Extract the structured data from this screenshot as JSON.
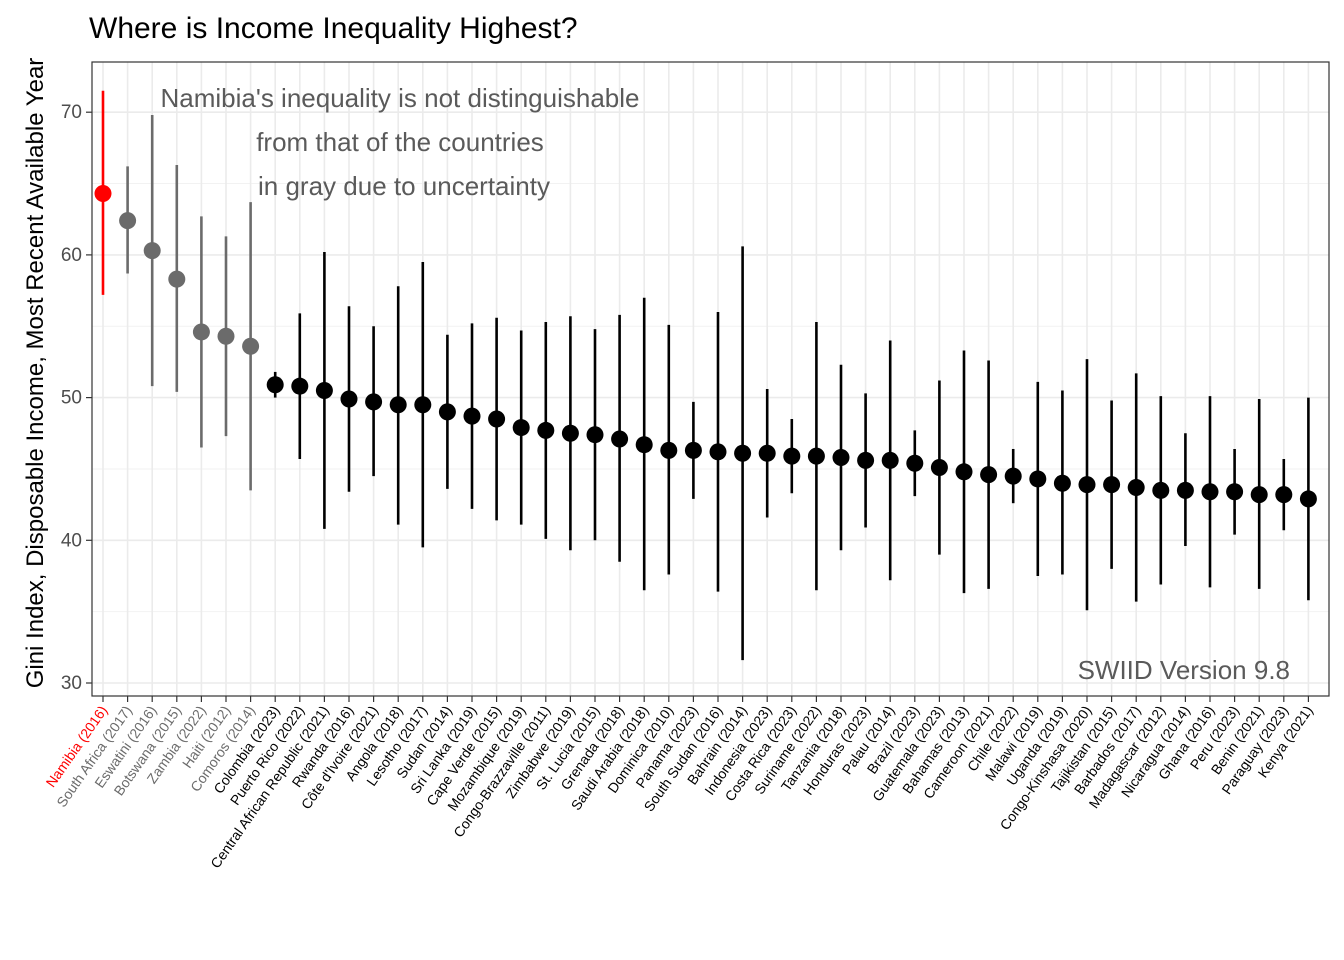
{
  "chart_data": {
    "type": "scatter",
    "title": "Where is Income Inequality Highest?",
    "xlabel": "",
    "ylabel": "Gini Index, Disposable Income, Most Recent Available Year",
    "ylim": [
      29.3,
      73.6
    ],
    "yticks": [
      30,
      40,
      50,
      60,
      70
    ],
    "grid": true,
    "annotation": [
      "Namibia's inequality is not distinguishable",
      "from that of the countries",
      "in gray due to uncertainty"
    ],
    "source_note": "SWIID Version 9.8",
    "colors": {
      "highlight": "#ff0000",
      "uncertain": "#6b6b6b",
      "other": "#000000",
      "grid": "#ebebeb"
    },
    "points": [
      {
        "label": "Namibia (2016)",
        "value": 64.3,
        "lower": 57.2,
        "upper": 71.5,
        "group": "highlight"
      },
      {
        "label": "South Africa (2017)",
        "value": 62.4,
        "lower": 58.7,
        "upper": 66.2,
        "group": "uncertain"
      },
      {
        "label": "Eswatini (2016)",
        "value": 60.3,
        "lower": 50.8,
        "upper": 69.8,
        "group": "uncertain"
      },
      {
        "label": "Botswana (2015)",
        "value": 58.3,
        "lower": 50.4,
        "upper": 66.3,
        "group": "uncertain"
      },
      {
        "label": "Zambia (2022)",
        "value": 54.6,
        "lower": 46.5,
        "upper": 62.7,
        "group": "uncertain"
      },
      {
        "label": "Haiti (2012)",
        "value": 54.3,
        "lower": 47.3,
        "upper": 61.3,
        "group": "uncertain"
      },
      {
        "label": "Comoros (2014)",
        "value": 53.6,
        "lower": 43.5,
        "upper": 63.7,
        "group": "uncertain"
      },
      {
        "label": "Colombia (2023)",
        "value": 50.9,
        "lower": 50.0,
        "upper": 51.8,
        "group": "other"
      },
      {
        "label": "Puerto Rico (2022)",
        "value": 50.8,
        "lower": 45.7,
        "upper": 55.9,
        "group": "other"
      },
      {
        "label": "Central African Republic (2021)",
        "value": 50.5,
        "lower": 40.8,
        "upper": 60.2,
        "group": "other"
      },
      {
        "label": "Rwanda (2016)",
        "value": 49.9,
        "lower": 43.4,
        "upper": 56.4,
        "group": "other"
      },
      {
        "label": "Côte d'Ivoire (2021)",
        "value": 49.7,
        "lower": 44.5,
        "upper": 55.0,
        "group": "other"
      },
      {
        "label": "Angola (2018)",
        "value": 49.5,
        "lower": 41.1,
        "upper": 57.8,
        "group": "other"
      },
      {
        "label": "Lesotho (2017)",
        "value": 49.5,
        "lower": 39.5,
        "upper": 59.5,
        "group": "other"
      },
      {
        "label": "Sudan (2014)",
        "value": 49.0,
        "lower": 43.6,
        "upper": 54.4,
        "group": "other"
      },
      {
        "label": "Sri Lanka (2019)",
        "value": 48.7,
        "lower": 42.2,
        "upper": 55.2,
        "group": "other"
      },
      {
        "label": "Cape Verde (2015)",
        "value": 48.5,
        "lower": 41.4,
        "upper": 55.6,
        "group": "other"
      },
      {
        "label": "Mozambique (2019)",
        "value": 47.9,
        "lower": 41.1,
        "upper": 54.7,
        "group": "other"
      },
      {
        "label": "Congo-Brazzaville (2011)",
        "value": 47.7,
        "lower": 40.1,
        "upper": 55.3,
        "group": "other"
      },
      {
        "label": "Zimbabwe (2019)",
        "value": 47.5,
        "lower": 39.3,
        "upper": 55.7,
        "group": "other"
      },
      {
        "label": "St. Lucia (2015)",
        "value": 47.4,
        "lower": 40.0,
        "upper": 54.8,
        "group": "other"
      },
      {
        "label": "Grenada (2018)",
        "value": 47.1,
        "lower": 38.5,
        "upper": 55.8,
        "group": "other"
      },
      {
        "label": "Saudi Arabia (2018)",
        "value": 46.7,
        "lower": 36.5,
        "upper": 57.0,
        "group": "other"
      },
      {
        "label": "Dominica (2010)",
        "value": 46.3,
        "lower": 37.6,
        "upper": 55.1,
        "group": "other"
      },
      {
        "label": "Panama (2023)",
        "value": 46.3,
        "lower": 42.9,
        "upper": 49.7,
        "group": "other"
      },
      {
        "label": "South Sudan (2016)",
        "value": 46.2,
        "lower": 36.4,
        "upper": 56.0,
        "group": "other"
      },
      {
        "label": "Bahrain (2014)",
        "value": 46.1,
        "lower": 31.6,
        "upper": 60.6,
        "group": "other"
      },
      {
        "label": "Indonesia (2023)",
        "value": 46.1,
        "lower": 41.6,
        "upper": 50.6,
        "group": "other"
      },
      {
        "label": "Costa Rica (2023)",
        "value": 45.9,
        "lower": 43.3,
        "upper": 48.5,
        "group": "other"
      },
      {
        "label": "Suriname (2022)",
        "value": 45.9,
        "lower": 36.5,
        "upper": 55.3,
        "group": "other"
      },
      {
        "label": "Tanzania (2018)",
        "value": 45.8,
        "lower": 39.3,
        "upper": 52.3,
        "group": "other"
      },
      {
        "label": "Honduras (2023)",
        "value": 45.6,
        "lower": 40.9,
        "upper": 50.3,
        "group": "other"
      },
      {
        "label": "Palau (2014)",
        "value": 45.6,
        "lower": 37.2,
        "upper": 54.0,
        "group": "other"
      },
      {
        "label": "Brazil (2023)",
        "value": 45.4,
        "lower": 43.1,
        "upper": 47.7,
        "group": "other"
      },
      {
        "label": "Guatemala (2023)",
        "value": 45.1,
        "lower": 39.0,
        "upper": 51.2,
        "group": "other"
      },
      {
        "label": "Bahamas (2013)",
        "value": 44.8,
        "lower": 36.3,
        "upper": 53.3,
        "group": "other"
      },
      {
        "label": "Cameroon (2021)",
        "value": 44.6,
        "lower": 36.6,
        "upper": 52.6,
        "group": "other"
      },
      {
        "label": "Chile (2022)",
        "value": 44.5,
        "lower": 42.6,
        "upper": 46.4,
        "group": "other"
      },
      {
        "label": "Malawi (2019)",
        "value": 44.3,
        "lower": 37.5,
        "upper": 51.1,
        "group": "other"
      },
      {
        "label": "Uganda (2019)",
        "value": 44.0,
        "lower": 37.6,
        "upper": 50.5,
        "group": "other"
      },
      {
        "label": "Congo-Kinshasa (2020)",
        "value": 43.9,
        "lower": 35.1,
        "upper": 52.7,
        "group": "other"
      },
      {
        "label": "Tajikistan (2015)",
        "value": 43.9,
        "lower": 38.0,
        "upper": 49.8,
        "group": "other"
      },
      {
        "label": "Barbados (2017)",
        "value": 43.7,
        "lower": 35.7,
        "upper": 51.7,
        "group": "other"
      },
      {
        "label": "Madagascar (2012)",
        "value": 43.5,
        "lower": 36.9,
        "upper": 50.1,
        "group": "other"
      },
      {
        "label": "Nicaragua (2014)",
        "value": 43.5,
        "lower": 39.6,
        "upper": 47.5,
        "group": "other"
      },
      {
        "label": "Ghana (2016)",
        "value": 43.4,
        "lower": 36.7,
        "upper": 50.1,
        "group": "other"
      },
      {
        "label": "Peru (2023)",
        "value": 43.4,
        "lower": 40.4,
        "upper": 46.4,
        "group": "other"
      },
      {
        "label": "Benin (2021)",
        "value": 43.2,
        "lower": 36.6,
        "upper": 49.9,
        "group": "other"
      },
      {
        "label": "Paraguay (2023)",
        "value": 43.2,
        "lower": 40.7,
        "upper": 45.7,
        "group": "other"
      },
      {
        "label": "Kenya (2021)",
        "value": 42.9,
        "lower": 35.8,
        "upper": 50.0,
        "group": "other"
      }
    ]
  }
}
